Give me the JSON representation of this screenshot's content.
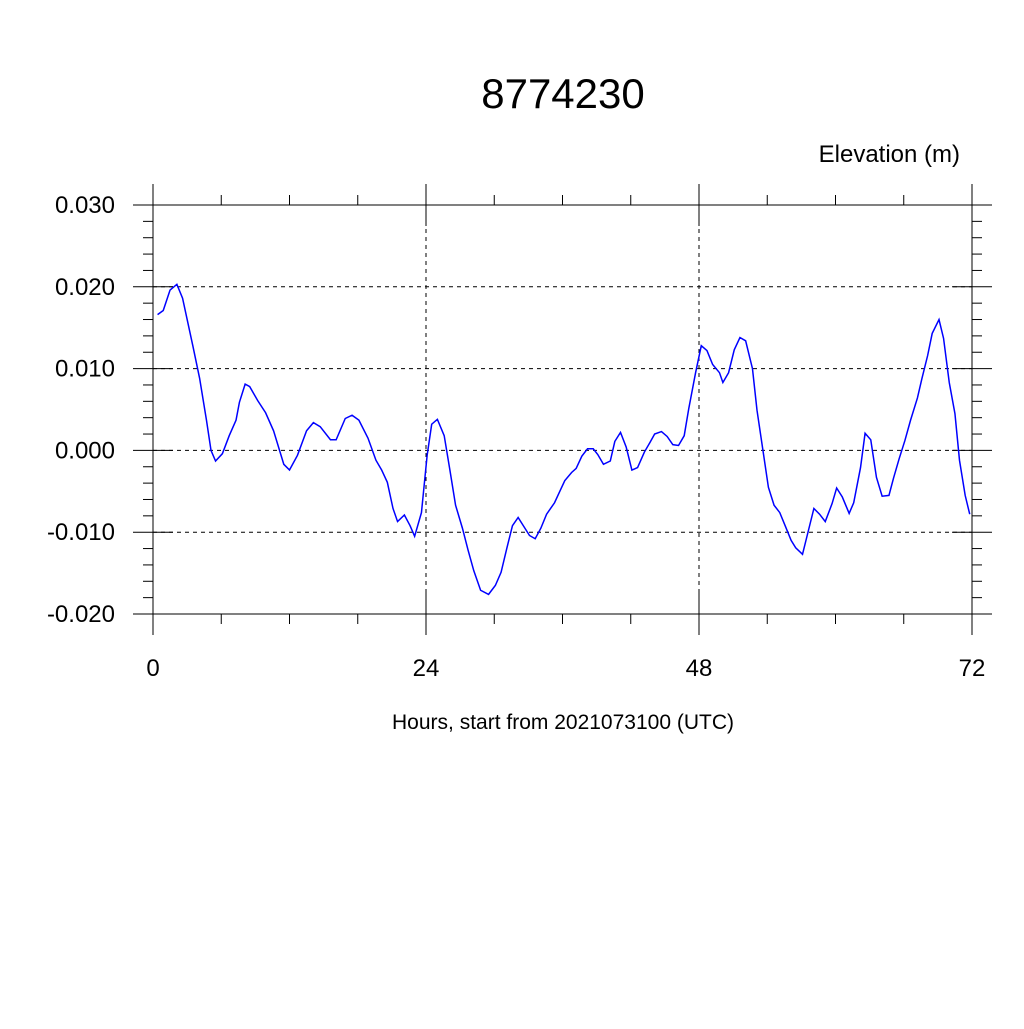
{
  "chart_data": {
    "type": "line",
    "title": "8774230",
    "y_label": "Elevation (m)",
    "x_label": "Hours, start from 2021073100 (UTC)",
    "x": [
      0.4,
      0.9,
      1.5,
      2.1,
      2.6,
      3.5,
      4.1,
      4.7,
      5.1,
      5.5,
      6.1,
      6.7,
      7.3,
      7.6,
      8.1,
      8.5,
      9.2,
      9.9,
      10.6,
      11.5,
      12.0,
      12.7,
      13.5,
      14.1,
      14.7,
      15.6,
      16.1,
      16.9,
      17.5,
      18.1,
      18.9,
      19.6,
      20.1,
      20.6,
      21.1,
      21.5,
      22.1,
      22.6,
      23.0,
      23.6,
      24.1,
      24.5,
      25.0,
      25.6,
      26.1,
      26.6,
      27.2,
      27.7,
      28.2,
      28.8,
      29.5,
      30.1,
      30.6,
      31.1,
      31.6,
      32.1,
      32.6,
      33.1,
      33.6,
      34.1,
      34.6,
      35.3,
      35.8,
      36.2,
      36.8,
      37.2,
      37.7,
      38.2,
      38.7,
      39.1,
      39.6,
      40.2,
      40.6,
      41.1,
      41.6,
      42.1,
      42.6,
      43.2,
      43.7,
      44.1,
      44.7,
      45.2,
      45.7,
      46.2,
      46.7,
      47.1,
      47.7,
      48.2,
      48.7,
      49.2,
      49.8,
      50.1,
      50.6,
      51.1,
      51.6,
      52.1,
      52.7,
      53.1,
      53.6,
      54.1,
      54.6,
      55.1,
      55.6,
      56.1,
      56.5,
      57.1,
      57.6,
      58.1,
      58.6,
      59.1,
      59.7,
      60.1,
      60.6,
      61.2,
      61.6,
      62.2,
      62.6,
      63.1,
      63.6,
      64.1,
      64.7,
      65.1,
      65.6,
      66.1,
      66.6,
      67.2,
      67.6,
      68.1,
      68.5,
      69.1,
      69.5,
      70.0,
      70.5,
      70.9,
      71.4,
      71.8
    ],
    "series": [
      {
        "color": "#0000ff",
        "values": [
          0.0166,
          0.0171,
          0.0196,
          0.0203,
          0.0186,
          0.0128,
          0.0088,
          0.0037,
          0.0,
          -0.0013,
          -0.0004,
          0.0018,
          0.0037,
          0.0059,
          0.0081,
          0.0078,
          0.0061,
          0.0046,
          0.0024,
          -0.0017,
          -0.0024,
          -0.0006,
          0.0024,
          0.0034,
          0.0029,
          0.0013,
          0.0013,
          0.0039,
          0.0043,
          0.0037,
          0.0015,
          -0.0012,
          -0.0024,
          -0.0039,
          -0.0071,
          -0.0087,
          -0.0079,
          -0.0092,
          -0.0105,
          -0.0076,
          -0.0006,
          0.0032,
          0.0038,
          0.0018,
          -0.0024,
          -0.0067,
          -0.0095,
          -0.0122,
          -0.0147,
          -0.0171,
          -0.0176,
          -0.0165,
          -0.0149,
          -0.012,
          -0.0092,
          -0.0082,
          -0.0093,
          -0.0104,
          -0.0108,
          -0.0095,
          -0.0078,
          -0.0064,
          -0.0049,
          -0.0037,
          -0.0027,
          -0.0022,
          -0.0007,
          0.0002,
          0.0002,
          -0.0005,
          -0.0017,
          -0.0013,
          0.0011,
          0.0022,
          0.0004,
          -0.0024,
          -0.0021,
          -0.0002,
          0.001,
          0.002,
          0.0023,
          0.0017,
          0.0007,
          0.0006,
          0.0018,
          0.0051,
          0.0095,
          0.0128,
          0.0122,
          0.0105,
          0.0095,
          0.0083,
          0.0095,
          0.0123,
          0.0138,
          0.0134,
          0.01,
          0.0049,
          0.0002,
          -0.0045,
          -0.0067,
          -0.0076,
          -0.0093,
          -0.011,
          -0.0119,
          -0.0127,
          -0.0099,
          -0.0071,
          -0.0078,
          -0.0087,
          -0.0065,
          -0.0046,
          -0.0057,
          -0.0077,
          -0.0064,
          -0.0021,
          0.0021,
          0.0013,
          -0.0033,
          -0.0056,
          -0.0055,
          -0.0034,
          -0.001,
          0.0012,
          0.0037,
          0.0064,
          0.0088,
          0.0116,
          0.0143,
          0.016,
          0.0137,
          0.0083,
          0.0045,
          -0.0012,
          -0.0055,
          -0.0078
        ]
      }
    ],
    "xlim": [
      0,
      72
    ],
    "xticks": [
      0,
      24,
      48,
      72
    ],
    "ylim": [
      -0.02,
      0.03
    ],
    "yticks": [
      {
        "value": -0.02,
        "label": "-0.020"
      },
      {
        "value": -0.01,
        "label": "-0.010"
      },
      {
        "value": 0,
        "label": "0.000"
      },
      {
        "value": 0.01,
        "label": "0.010"
      },
      {
        "value": 0.02,
        "label": "0.020"
      },
      {
        "value": 0.03,
        "label": "0.030"
      }
    ],
    "grid": true
  }
}
